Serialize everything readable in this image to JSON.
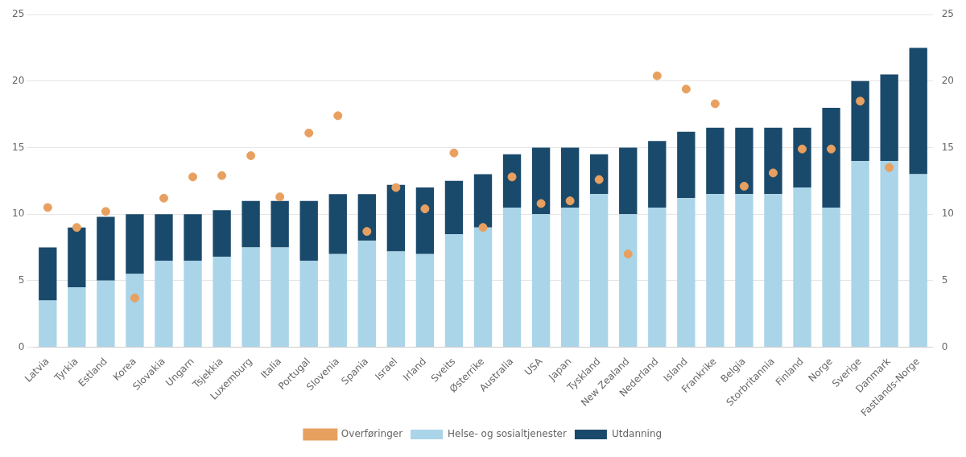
{
  "chart_data": {
    "type": "bar",
    "stacked": true,
    "categories": [
      "Latvia",
      "Tyrkia",
      "Estland",
      "Korea",
      "Slovakia",
      "Ungarn",
      "Tsjekkia",
      "Luxemburg",
      "Italia",
      "Portugal",
      "Slovenia",
      "Spania",
      "Israel",
      "Irland",
      "Sveits",
      "Østerrike",
      "Australia",
      "USA",
      "Japan",
      "Tyskland",
      "New Zealand",
      "Nederland",
      "Island",
      "Frankrike",
      "Belgia",
      "Storbritannia",
      "Finland",
      "Norge",
      "Sverige",
      "Danmark",
      "Fastlands-Norge"
    ],
    "series": [
      {
        "name": "Helse- og sosialtjenester",
        "type": "bar",
        "color": "#aad4e8",
        "values": [
          3.5,
          4.5,
          5.0,
          5.5,
          6.5,
          6.5,
          6.8,
          7.5,
          7.5,
          6.5,
          7.0,
          8.0,
          7.2,
          7.0,
          8.5,
          9.0,
          10.5,
          10.0,
          10.5,
          11.5,
          10.0,
          10.5,
          11.2,
          11.5,
          11.5,
          11.5,
          12.0,
          10.5,
          14.0,
          14.0,
          13.0
        ]
      },
      {
        "name": "Utdanning",
        "type": "bar",
        "color": "#1a4a6b",
        "values": [
          4.0,
          4.5,
          4.8,
          4.5,
          3.5,
          3.5,
          3.5,
          3.5,
          3.5,
          4.5,
          4.5,
          3.5,
          5.0,
          5.0,
          4.0,
          4.0,
          4.0,
          5.0,
          4.5,
          3.0,
          5.0,
          5.0,
          5.0,
          5.0,
          5.0,
          5.0,
          4.5,
          7.5,
          6.0,
          6.5,
          9.5
        ]
      },
      {
        "name": "Overføringer",
        "type": "scatter",
        "color": "#e8a060",
        "values": [
          10.5,
          9.0,
          10.2,
          3.7,
          11.2,
          12.8,
          12.9,
          14.4,
          11.3,
          16.1,
          17.4,
          8.7,
          12.0,
          10.4,
          14.6,
          9.0,
          12.8,
          10.8,
          11.0,
          12.6,
          7.0,
          20.4,
          19.4,
          18.3,
          12.1,
          13.1,
          14.9,
          14.9,
          18.5,
          13.5,
          null
        ]
      }
    ],
    "ylim": [
      0,
      25
    ],
    "yticks": [
      0,
      5,
      10,
      15,
      20,
      25
    ],
    "y2lim": [
      0,
      25
    ],
    "y2ticks": [
      0,
      5,
      10,
      15,
      20,
      25
    ],
    "grid": true,
    "legend": "bottom"
  }
}
